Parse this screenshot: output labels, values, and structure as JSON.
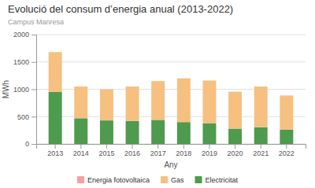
{
  "chart_data": {
    "type": "bar",
    "stacked": true,
    "title": "Evolució del consum d’energia anual (2013-2022)",
    "subtitle": "Campus Manresa",
    "x_label": "Any",
    "y_label": "MWh",
    "categories": [
      "2013",
      "2014",
      "2015",
      "2016",
      "2017",
      "2018",
      "2019",
      "2020",
      "2021",
      "2022"
    ],
    "series": [
      {
        "name": "Electricitat",
        "color": "#4e9a4e",
        "values": [
          950,
          470,
          430,
          420,
          440,
          400,
          380,
          280,
          305,
          260
        ]
      },
      {
        "name": "Gas",
        "color": "#f5c080",
        "values": [
          730,
          580,
          570,
          630,
          710,
          800,
          780,
          675,
          745,
          615
        ]
      },
      {
        "name": "Energia fotovoltaica",
        "color": "#f5a0a0",
        "values": [
          0,
          0,
          0,
          0,
          0,
          0,
          0,
          0,
          0,
          10
        ]
      }
    ],
    "ylim": [
      0,
      2000
    ],
    "yticks": [
      0,
      500,
      1000,
      1500,
      2000
    ],
    "grid": true,
    "legend": "bottom"
  }
}
